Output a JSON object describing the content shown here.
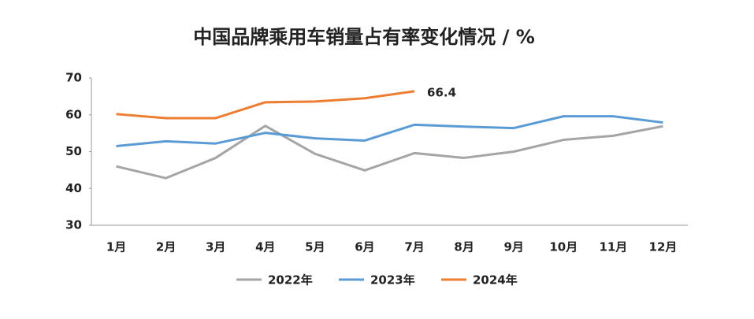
{
  "chart_data": {
    "type": "line",
    "title": "中国品牌乘用车销量占有率变化情况 / %",
    "categories": [
      "1月",
      "2月",
      "3月",
      "4月",
      "5月",
      "6月",
      "7月",
      "8月",
      "9月",
      "10月",
      "11月",
      "12月"
    ],
    "series": [
      {
        "name": "2022年",
        "color": "#a5a5a5",
        "values": [
          46,
          42.8,
          48.3,
          57,
          49.4,
          44.9,
          49.6,
          48.3,
          50,
          53.2,
          54.3,
          56.9
        ]
      },
      {
        "name": "2023年",
        "color": "#5b9bd5",
        "values": [
          51.5,
          52.8,
          52.2,
          55.1,
          53.6,
          53,
          57.3,
          56.8,
          56.4,
          59.6,
          59.6,
          57.9
        ]
      },
      {
        "name": "2024年",
        "color": "#ed7d31",
        "values": [
          60.2,
          59.1,
          59.1,
          63.4,
          63.6,
          64.5,
          66.4,
          null,
          null,
          null,
          null,
          null
        ]
      }
    ],
    "ylim": [
      30,
      70
    ],
    "yticks": [
      30,
      40,
      50,
      60,
      70
    ],
    "grid": false,
    "legend": "bottom"
  }
}
